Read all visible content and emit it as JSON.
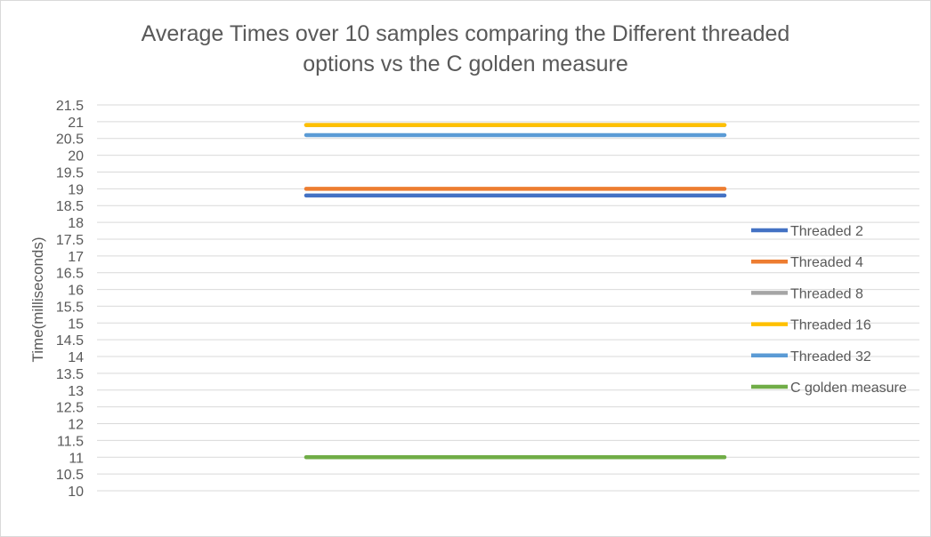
{
  "chart_data": {
    "type": "line",
    "title": "Average Times over 10 samples comparing the Different threaded options vs the C golden measure",
    "title_lines": [
      "Average Times over 10 samples comparing the Different threaded",
      "options vs the C golden measure"
    ],
    "xlabel": "",
    "ylabel": "Time(milliseconds)",
    "ylim": [
      10,
      21.5
    ],
    "y_ticks": [
      "10",
      "10.5",
      "11",
      "11.5",
      "12",
      "12.5",
      "13",
      "13.5",
      "14",
      "14.5",
      "15",
      "15.5",
      "16",
      "16.5",
      "17",
      "17.5",
      "18",
      "18.5",
      "19",
      "19.5",
      "20",
      "20.5",
      "21",
      "21.5"
    ],
    "grid": true,
    "legend_position": "right",
    "series": [
      {
        "name": "Threaded 2",
        "values": [
          18.8,
          18.8
        ],
        "color": "#4472C4"
      },
      {
        "name": "Threaded 4",
        "values": [
          19.0,
          19.0
        ],
        "color": "#ED7D31"
      },
      {
        "name": "Threaded 8",
        "values": [
          20.9,
          20.9
        ],
        "color": "#A5A5A5"
      },
      {
        "name": "Threaded 16",
        "values": [
          20.9,
          20.9
        ],
        "color": "#FFC000"
      },
      {
        "name": "Threaded 32",
        "values": [
          20.6,
          20.6
        ],
        "color": "#5B9BD5"
      },
      {
        "name": "C golden measure",
        "values": [
          11.0,
          11.0
        ],
        "color": "#70AD47"
      }
    ]
  }
}
